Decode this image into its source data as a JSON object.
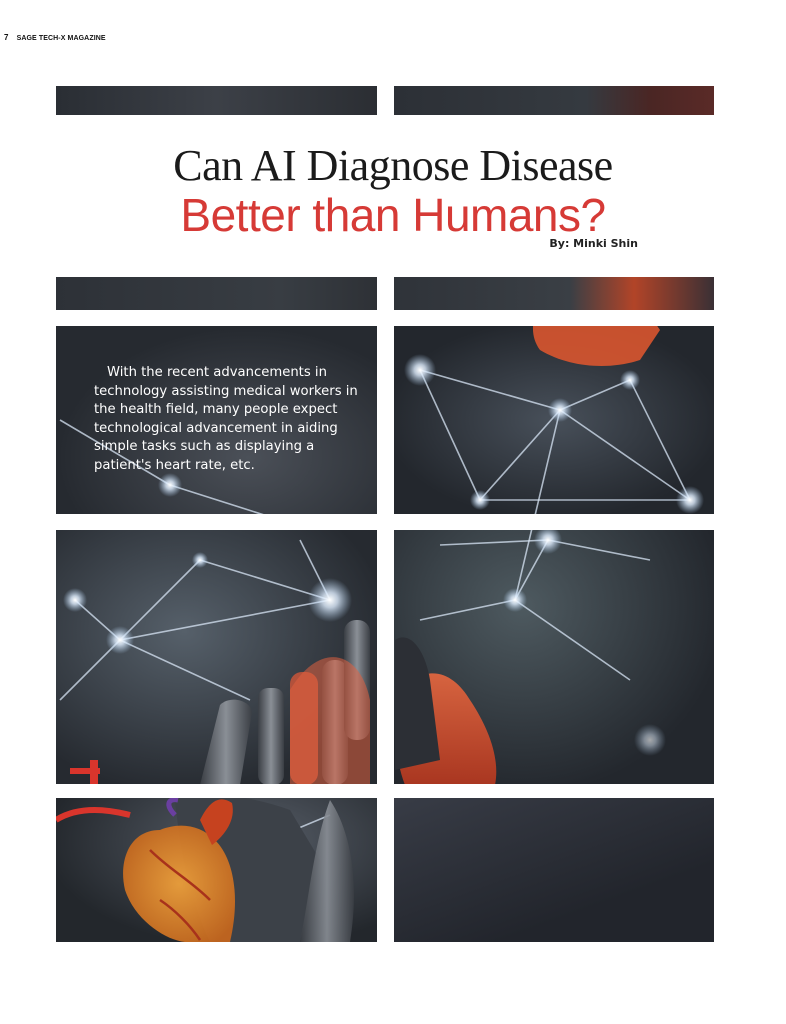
{
  "header": {
    "page_number": "7",
    "publication": "SAGE TECH-X MAGAZINE"
  },
  "article": {
    "title_line1": "Can AI Diagnose Disease",
    "title_line2": "Better than Humans?",
    "byline": "By: Minki Shin",
    "intro": "With the recent advancements in technology assisting medical workers in the health field, many people expect technological advancement in aiding simple tasks such as displaying a patient's heart rate, etc."
  },
  "colors": {
    "accent_red": "#d63a36",
    "panel_dark": "#1e2126",
    "node_glow": "#e8f2ff"
  },
  "illustration": {
    "description_icon": "network-robot-hand-heart-image"
  }
}
